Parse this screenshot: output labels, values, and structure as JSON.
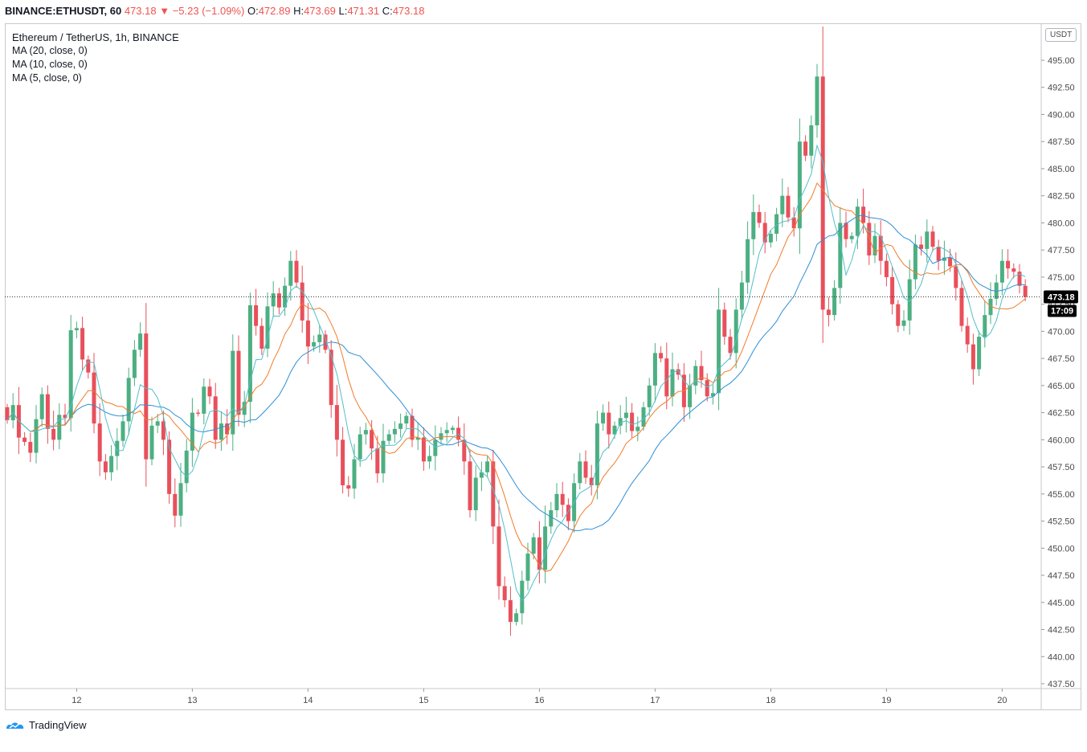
{
  "header": {
    "symbol": "BINANCE:ETHUSDT, 60",
    "last": "473.18",
    "change": "−5.23 (−1.09%)",
    "open_label": "O:",
    "open": "472.89",
    "high_label": "H:",
    "high": "473.69",
    "low_label": "L:",
    "low": "471.31",
    "close_label": "C:",
    "close": "473.18"
  },
  "legend": {
    "title": "Ethereum / TetherUS, 1h, BINANCE",
    "ma20": "MA (20, close, 0)",
    "ma10": "MA (10, close, 0)",
    "ma5": "MA (5, close, 0)"
  },
  "price_axis": {
    "currency_button": "USDT",
    "last_price_label": "473.18",
    "countdown": "17:09"
  },
  "brand": "TradingView",
  "colors": {
    "up": "#4caf82",
    "down": "#e8505b",
    "ma20": "#2f8fd6",
    "ma10": "#f07c2a",
    "ma5": "#52bfc9",
    "grid": "#c9c9c9"
  },
  "chart_data": {
    "type": "candlestick",
    "title": "Ethereum / TetherUS, 1h, BINANCE",
    "ylim": [
      436.5,
      497
    ],
    "yticks": [
      437.5,
      440,
      442.5,
      445,
      447.5,
      450,
      452.5,
      455,
      457.5,
      460,
      462.5,
      465,
      467.5,
      470,
      472.5,
      475,
      477.5,
      480,
      482.5,
      485,
      487.5,
      490,
      492.5,
      495
    ],
    "ytick_labels": [
      "437.50",
      "440.00",
      "442.50",
      "445.00",
      "447.50",
      "450.00",
      "452.50",
      "455.00",
      "457.50",
      "460.00",
      "462.50",
      "465.00",
      "467.50",
      "470.00",
      "472.50",
      "475.00",
      "477.50",
      "480.00",
      "482.50",
      "485.00",
      "487.50",
      "490.00",
      "492.50",
      "495.00"
    ],
    "xticks": [
      {
        "label": "12",
        "bar": 12
      },
      {
        "label": "13",
        "bar": 32
      },
      {
        "label": "14",
        "bar": 52
      },
      {
        "label": "15",
        "bar": 72
      },
      {
        "label": "16",
        "bar": 92
      },
      {
        "label": "17",
        "bar": 112
      },
      {
        "label": "18",
        "bar": 132
      },
      {
        "label": "19",
        "bar": 152
      },
      {
        "label": "20",
        "bar": 172
      }
    ],
    "last_price": 473.18,
    "closes": [
      461.8,
      463.2,
      460.2,
      459.8,
      458.8,
      461.9,
      464.2,
      461.0,
      460.0,
      462.3,
      462.0,
      470.1,
      470.3,
      467.4,
      466.2,
      461.5,
      458.0,
      457.0,
      458.5,
      459.9,
      461.7,
      465.7,
      468.3,
      469.8,
      458.2,
      461.3,
      461.7,
      460.0,
      455.0,
      453.0,
      456.0,
      459.0,
      462.5,
      462.4,
      464.9,
      464.0,
      460.0,
      461.5,
      460.5,
      468.2,
      462.3,
      463.5,
      472.4,
      470.5,
      468.4,
      472.3,
      473.5,
      472.2,
      474.2,
      476.5,
      474.5,
      471.0,
      468.6,
      469.0,
      469.7,
      468.3,
      463.2,
      460.0,
      455.8,
      455.5,
      458.2,
      460.5,
      460.9,
      459.2,
      456.9,
      459.9,
      460.5,
      461.0,
      461.5,
      462.2,
      460.0,
      460.2,
      458.0,
      458.5,
      460.0,
      460.6,
      460.9,
      461.1,
      460.0,
      458.0,
      453.5,
      456.5,
      457.0,
      458.0,
      452.0,
      446.5,
      445.2,
      443.2,
      444.0,
      447.0,
      449.5,
      451.0,
      448.0,
      452.0,
      453.5,
      455.0,
      454.0,
      452.5,
      456.0,
      458.0,
      456.5,
      455.8,
      461.5,
      462.5,
      460.5,
      461.3,
      462.0,
      462.5,
      460.8,
      461.2,
      463.0,
      465.0,
      468.0,
      467.5,
      464.0,
      466.5,
      466.0,
      463.0,
      465.0,
      466.8,
      465.5,
      464.0,
      464.3,
      472.0,
      469.5,
      468.0,
      472.0,
      474.5,
      478.5,
      481.0,
      480.0,
      478.2,
      479.0,
      480.8,
      482.5,
      480.5,
      479.5,
      487.5,
      486.2,
      489.0,
      493.5,
      472.0,
      471.5,
      474.0,
      480.0,
      478.5,
      478.8,
      481.5,
      480.0,
      477.0,
      478.8,
      476.5,
      475.0,
      472.5,
      470.5,
      471.0,
      474.8,
      478.0,
      477.6,
      479.2,
      477.8,
      476.5,
      476.8,
      476.0,
      474.0,
      470.5,
      468.8,
      466.5,
      469.5,
      471.5,
      473.0,
      474.5,
      476.5,
      475.8,
      475.5,
      474.2,
      473.18
    ],
    "series": [
      {
        "name": "MA (20, close, 0)"
      },
      {
        "name": "MA (10, close, 0)"
      },
      {
        "name": "MA (5, close, 0)"
      }
    ]
  }
}
